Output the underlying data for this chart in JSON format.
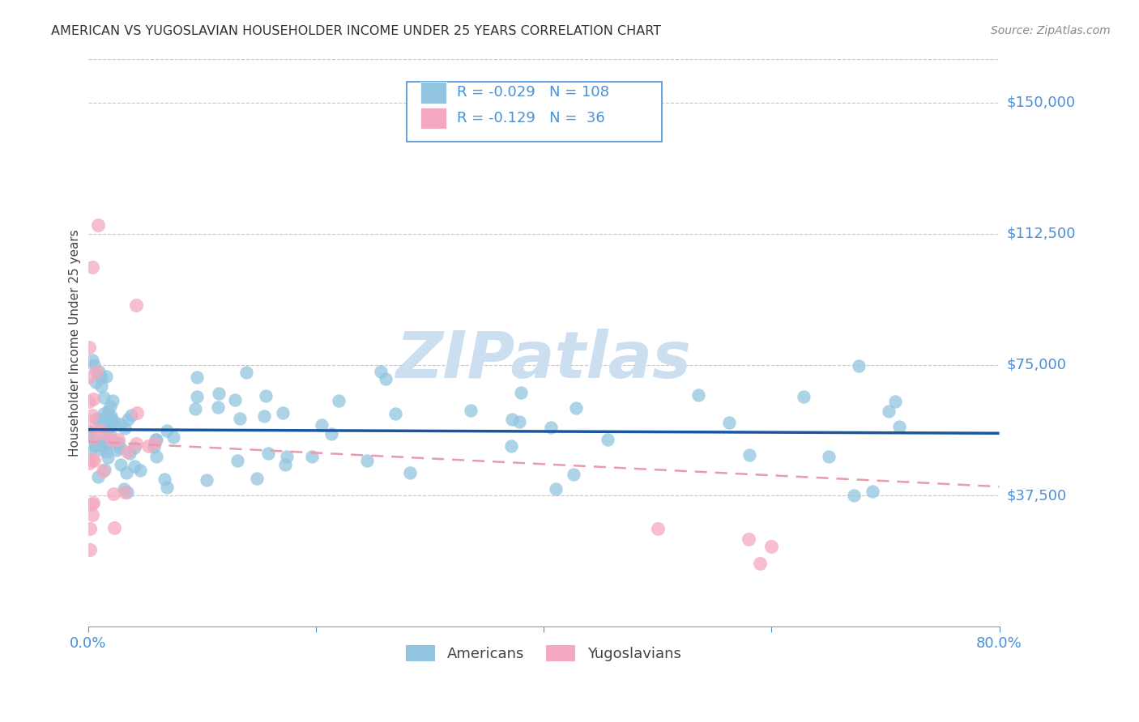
{
  "title": "AMERICAN VS YUGOSLAVIAN HOUSEHOLDER INCOME UNDER 25 YEARS CORRELATION CHART",
  "source": "Source: ZipAtlas.com",
  "ylabel": "Householder Income Under 25 years",
  "ytick_labels": [
    "$150,000",
    "$112,500",
    "$75,000",
    "$37,500"
  ],
  "ytick_values": [
    150000,
    112500,
    75000,
    37500
  ],
  "ylim": [
    0,
    162500
  ],
  "xlim": [
    0,
    0.8
  ],
  "americans_R": -0.029,
  "americans_N": 108,
  "yugoslavians_R": -0.129,
  "yugoslavians_N": 36,
  "american_color": "#92c5e0",
  "yugoslavian_color": "#f4a8bf",
  "american_line_color": "#1a56a0",
  "yugoslavian_line_color": "#e89ab0",
  "title_color": "#333333",
  "source_color": "#888888",
  "ylabel_color": "#444444",
  "ytick_color": "#4a90d9",
  "xtick_color": "#4a90d9",
  "watermark_color": "#ccdff0",
  "background_color": "#ffffff",
  "grid_color": "#c8c8c8",
  "legend_box_color": "#4a90d9"
}
